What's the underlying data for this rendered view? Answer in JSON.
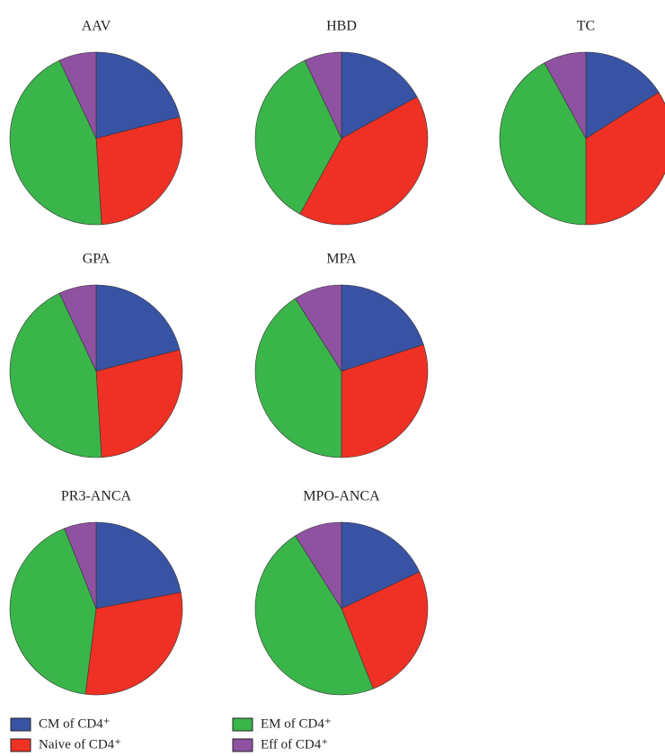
{
  "chart_data": {
    "type": "pie",
    "categories": [
      "CM of CD4⁺",
      "Naive of CD4⁺",
      "EM of CD4⁺",
      "Eff of CD4⁺"
    ],
    "colors": [
      "#3953a4",
      "#ee3124",
      "#3ab54a",
      "#8e52a1"
    ],
    "pies": [
      {
        "title": "AAV",
        "values": [
          21,
          28,
          44,
          7
        ]
      },
      {
        "title": "HBD",
        "values": [
          17,
          41,
          35,
          7
        ]
      },
      {
        "title": "TC",
        "values": [
          16,
          34,
          42,
          8
        ]
      },
      {
        "title": "GPA",
        "values": [
          21,
          28,
          44,
          7
        ]
      },
      {
        "title": "MPA",
        "values": [
          20,
          30,
          41,
          9
        ]
      },
      {
        "title": "PR3-ANCA",
        "values": [
          22,
          30,
          42,
          6
        ]
      },
      {
        "title": "MPO-ANCA",
        "values": [
          18,
          26,
          47,
          9
        ]
      }
    ]
  }
}
